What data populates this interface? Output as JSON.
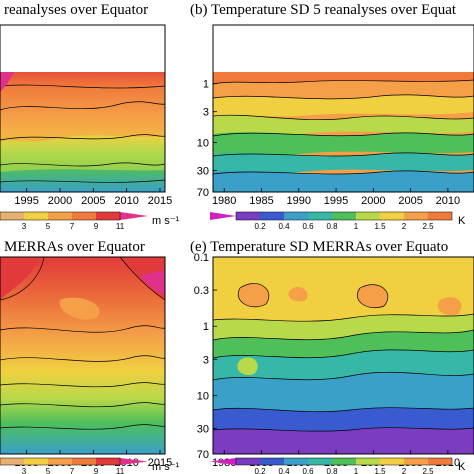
{
  "chart_data": [
    {
      "type": "heatmap",
      "panel": "a",
      "title": "reanalyses over Equator",
      "x_ticks": [
        1995,
        2000,
        2005,
        2010,
        2015
      ],
      "colorbar": {
        "ticks": [
          "3",
          "5",
          "7",
          "9",
          "11"
        ],
        "unit": "m s⁻¹"
      }
    },
    {
      "type": "heatmap",
      "panel": "b",
      "title": "(b) Temperature SD 5 reanalyses over Equat",
      "x_ticks": [
        1980,
        1985,
        1990,
        1995,
        2000,
        2005,
        2010
      ],
      "y_ticks": [
        "1",
        "3",
        "10",
        "30",
        "70"
      ],
      "colorbar": {
        "ticks": [
          "0.2",
          "0.4",
          "0.6",
          "0.8",
          "1",
          "1.5",
          "2",
          "2.5"
        ],
        "unit": "K"
      }
    },
    {
      "type": "heatmap",
      "panel": "d",
      "title": "MERRAs over Equator",
      "x_ticks": [
        1995,
        2000,
        2005,
        2010,
        2015
      ],
      "colorbar": {
        "ticks": [
          "3",
          "5",
          "7",
          "9",
          "11"
        ],
        "unit": "m s⁻¹"
      }
    },
    {
      "type": "heatmap",
      "panel": "e",
      "title": "(e) Temperature SD MERRAs over Equato",
      "x_ticks": [
        1980,
        1985,
        1990,
        1995,
        2000,
        2005,
        2010
      ],
      "y_ticks": [
        "0.1",
        "0.3",
        "1",
        "3",
        "10",
        "30",
        "70"
      ],
      "colorbar": {
        "ticks": [
          "0.2",
          "0.4",
          "0.6",
          "0.8",
          "1",
          "1.5",
          "2",
          "2.5"
        ],
        "unit": "K"
      }
    }
  ]
}
